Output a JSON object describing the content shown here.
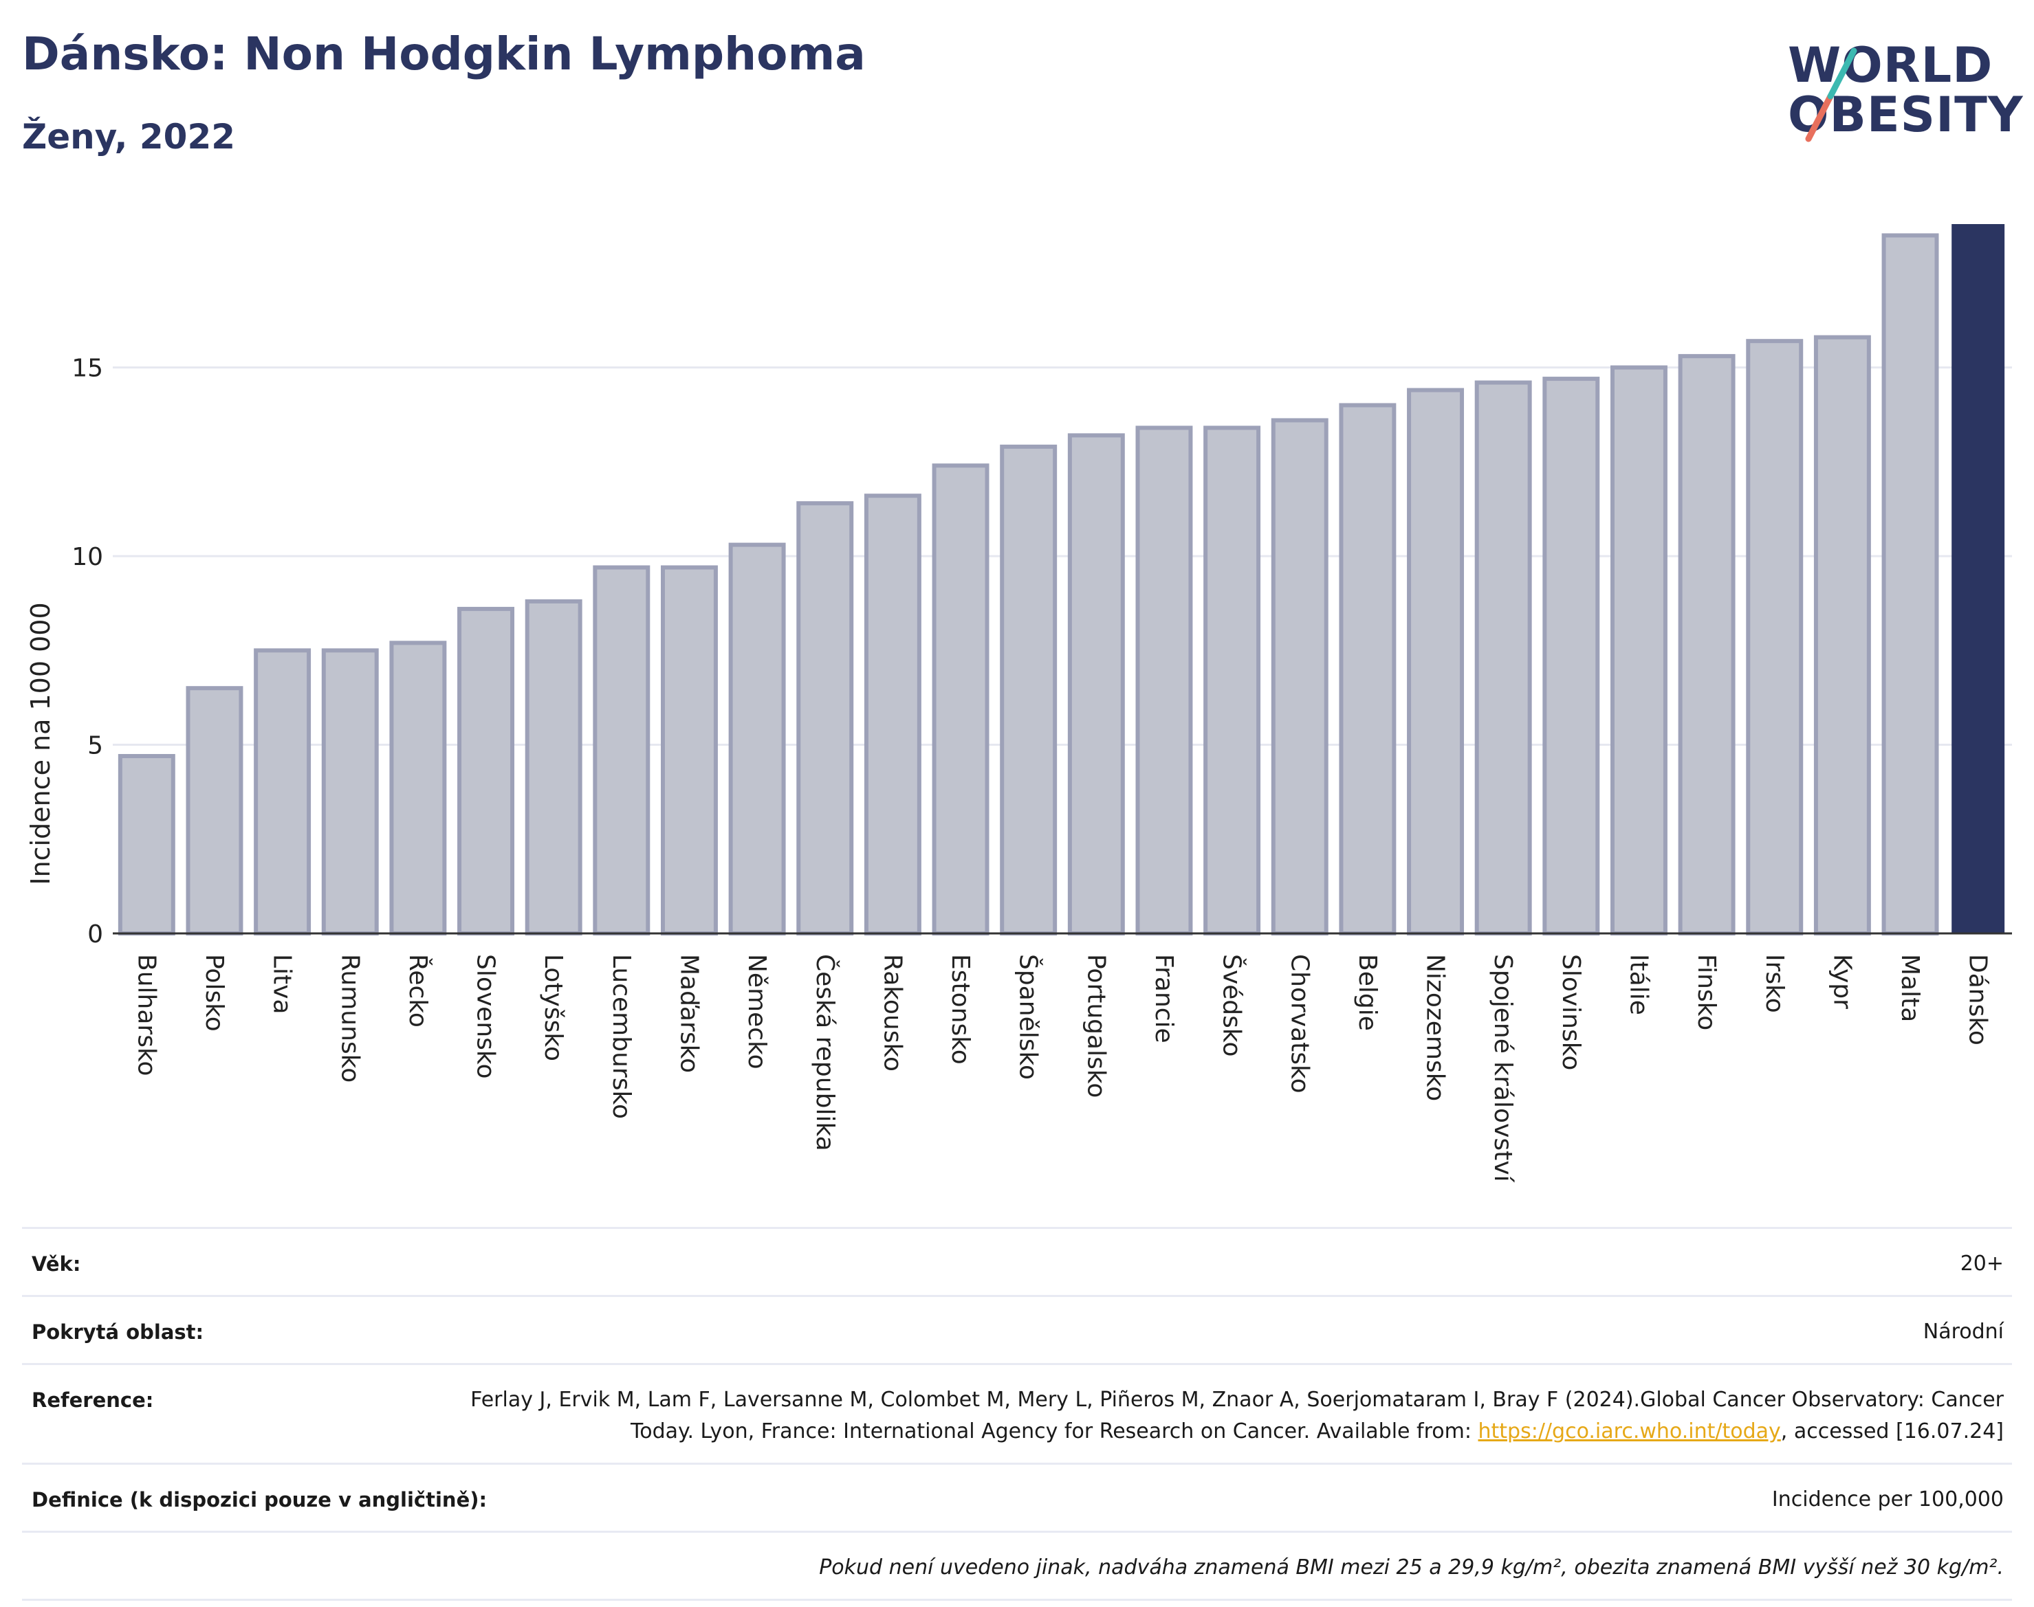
{
  "header": {
    "title": "Dánsko: Non Hodgkin Lymphoma",
    "subtitle": "Ženy, 2022"
  },
  "logo": {
    "line1": "WORLD",
    "line2": "OBESITY"
  },
  "chart_data": {
    "type": "bar",
    "ylabel": "Incidence na 100 000",
    "xlabel": "",
    "ylim": [
      0,
      18.8
    ],
    "yticks": [
      0,
      5,
      10,
      15
    ],
    "grid": true,
    "categories": [
      "Bulharsko",
      "Polsko",
      "Litva",
      "Rumunsko",
      "Řecko",
      "Slovensko",
      "Lotyšsko",
      "Lucembursko",
      "Maďarsko",
      "Německo",
      "Česká republika",
      "Rakousko",
      "Estonsko",
      "Španělsko",
      "Portugalsko",
      "Francie",
      "Švédsko",
      "Chorvatsko",
      "Belgie",
      "Nizozemsko",
      "Spojené království",
      "Slovinsko",
      "Itálie",
      "Finsko",
      "Irsko",
      "Kypr",
      "Malta",
      "Dánsko"
    ],
    "values": [
      4.7,
      6.5,
      7.5,
      7.5,
      7.7,
      8.6,
      8.8,
      9.7,
      9.7,
      10.3,
      11.4,
      11.6,
      12.4,
      12.9,
      13.2,
      13.4,
      13.4,
      13.6,
      14.0,
      14.4,
      14.6,
      14.7,
      15.0,
      15.3,
      15.7,
      15.8,
      18.5,
      18.8
    ],
    "highlight": "Dánsko",
    "colors": {
      "bar": "#c0c3ce",
      "bar_border": "#9da1b8",
      "highlight": "#2b3561",
      "grid": "#e6e8f0",
      "axis": "#333333"
    }
  },
  "info": {
    "age_label": "Věk:",
    "age_value": "20+",
    "area_label": "Pokrytá oblast:",
    "area_value": "Národní",
    "ref_label": "Reference:",
    "ref_text_1": "Ferlay J, Ervik M, Lam F, Laversanne M, Colombet M, Mery L, Piñeros M, Znaor A, Soerjomataram I, Bray F (2024).Global Cancer Observatory: Cancer Today. Lyon, France: International Agency for Research on Cancer. Available from: ",
    "ref_link": "https://gco.iarc.who.int/today",
    "ref_text_2": ", accessed [16.07.24]",
    "def_label": "Definice (k dispozici pouze v angličtině):",
    "def_value": "Incidence per 100,000",
    "note": "Pokud není uvedeno jinak, nadváha znamená BMI mezi 25 a 29,9 kg/m², obezita znamená BMI vyšší než 30 kg/m²."
  }
}
